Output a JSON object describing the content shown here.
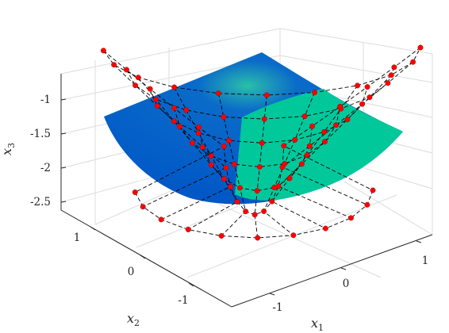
{
  "chart_data": {
    "type": "surface3d",
    "title": "",
    "axes": {
      "x1": {
        "label": "x",
        "subscript": "1",
        "ticks": [
          "-1",
          "0",
          "1"
        ]
      },
      "x2": {
        "label": "x",
        "subscript": "2",
        "ticks": [
          "-1",
          "0",
          "1"
        ]
      },
      "x3": {
        "label": "x",
        "subscript": "3",
        "ticks": [
          "-1",
          "-1.5",
          "-2",
          "-2.5"
        ]
      }
    },
    "grid": true,
    "box": "3d-axes-with-gridlines",
    "surface": {
      "description_colors": [
        "#0059c7",
        "#00c8a0"
      ],
      "control_net": {
        "marker_color": "#ff0000",
        "line_style": "dashed",
        "line_color": "#000000"
      }
    }
  }
}
